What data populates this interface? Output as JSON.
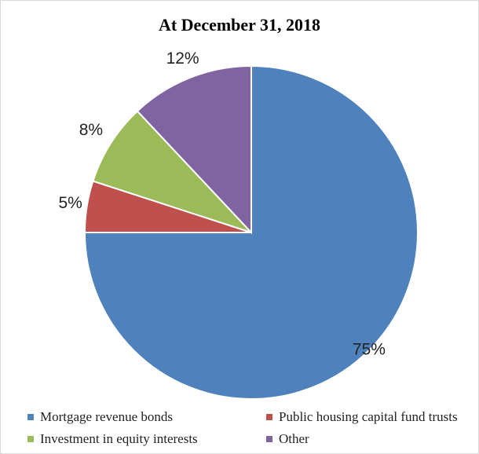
{
  "chart_data": {
    "type": "pie",
    "title": "At December 31, 2018",
    "categories": [
      "Mortgage revenue bonds",
      "Public housing capital fund trusts",
      "Investment in equity interests",
      "Other"
    ],
    "values": [
      75,
      5,
      8,
      12
    ],
    "labels": [
      "75%",
      "5%",
      "8%",
      "12%"
    ],
    "colors": [
      "#4f81bd",
      "#c0504d",
      "#9bbb59",
      "#8064a2"
    ],
    "legend_position": "bottom"
  }
}
